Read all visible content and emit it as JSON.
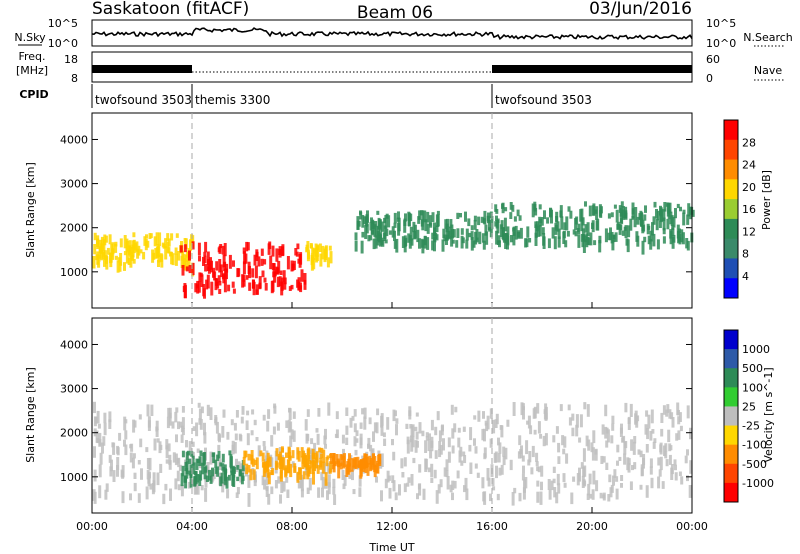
{
  "header": {
    "station": "Saskatoon (fitACF)",
    "beam": "Beam 06",
    "date": "03/Jun/2016"
  },
  "noise_panel": {
    "left_label": "N.Sky",
    "right_label": "N.Search",
    "left_ticks": [
      "10^5",
      "10^0"
    ],
    "right_ticks": [
      "10^5",
      "10^0"
    ]
  },
  "freq_panel": {
    "left_label_1": "Freq.",
    "left_label_2": "[MHz]",
    "right_label": "Nave",
    "left_ticks": [
      "18",
      "8"
    ],
    "right_ticks": [
      "60",
      "0"
    ]
  },
  "cpid": {
    "label": "CPID",
    "segments": [
      {
        "name": "twofsound 3503",
        "start": 0,
        "end": 4
      },
      {
        "name": "themis 3300",
        "start": 4,
        "end": 16
      },
      {
        "name": "twofsound 3503",
        "start": 16,
        "end": 24
      }
    ]
  },
  "colors": {
    "power_scale": [
      "#0000ff",
      "#1f4fb4",
      "#3a8a6a",
      "#2e8b57",
      "#9acd32",
      "#ffd700",
      "#ff8c00",
      "#ff4500",
      "#ff0000"
    ],
    "velocity_scale": [
      "#0000cd",
      "#2e5aa8",
      "#2e8b57",
      "#32cd32",
      "#bebebe",
      "#ffd700",
      "#ff8c00",
      "#ff4500",
      "#ff0000"
    ]
  },
  "chart_data": [
    {
      "type": "heatmap",
      "title": "",
      "xlabel": "",
      "ylabel": "Slant Range [km]",
      "xlim": [
        0,
        24
      ],
      "ylim": [
        180,
        4600
      ],
      "x_ticks": [
        0,
        4,
        8,
        12,
        16,
        20,
        24
      ],
      "y_ticks": [
        1000,
        2000,
        3000,
        4000
      ],
      "colorbar": {
        "label": "Power [dB]",
        "ticks": [
          "4",
          "8",
          "12",
          "16",
          "20",
          "24",
          "28"
        ],
        "range": [
          0,
          30
        ]
      },
      "features": [
        {
          "t_start": 0.0,
          "t_end": 4.0,
          "range_low": 1200,
          "range_high": 1900,
          "power_db": 18
        },
        {
          "t_start": 3.5,
          "t_end": 8.5,
          "range_low": 600,
          "range_high": 1700,
          "power_db": 30
        },
        {
          "t_start": 8.5,
          "t_end": 9.5,
          "range_low": 1300,
          "range_high": 1700,
          "power_db": 20
        },
        {
          "t_start": 10.5,
          "t_end": 16.0,
          "range_low": 1700,
          "range_high": 2400,
          "power_db": 10
        },
        {
          "t_start": 16.0,
          "t_end": 24.0,
          "range_low": 1700,
          "range_high": 2600,
          "power_db": 12
        }
      ]
    },
    {
      "type": "heatmap",
      "title": "",
      "xlabel": "Time UT",
      "ylabel": "Slant Range [km]",
      "xlim": [
        0,
        24
      ],
      "ylim": [
        180,
        4600
      ],
      "x_ticks": [
        0,
        4,
        8,
        12,
        16,
        20,
        24
      ],
      "x_tick_labels": [
        "00:00",
        "04:00",
        "08:00",
        "12:00",
        "16:00",
        "20:00",
        "00:00"
      ],
      "y_ticks": [
        1000,
        2000,
        3000,
        4000
      ],
      "colorbar": {
        "label": "Velocity [m s^-1]",
        "ticks": [
          "1000",
          "500",
          "100",
          "25",
          "-25",
          "-100",
          "-500",
          "-1000"
        ]
      },
      "features": [
        {
          "t_start": 0.0,
          "t_end": 24.0,
          "range_low": 600,
          "range_high": 2700,
          "velocity": 0,
          "note_class": "ground scatter"
        },
        {
          "t_start": 3.5,
          "t_end": 6.0,
          "range_low": 1000,
          "range_high": 1600,
          "velocity": 150
        },
        {
          "t_start": 6.0,
          "t_end": 9.5,
          "range_low": 1100,
          "range_high": 1700,
          "velocity": -150
        },
        {
          "t_start": 9.5,
          "t_end": 11.5,
          "range_low": 1250,
          "range_high": 1550,
          "velocity": -250
        }
      ]
    }
  ]
}
